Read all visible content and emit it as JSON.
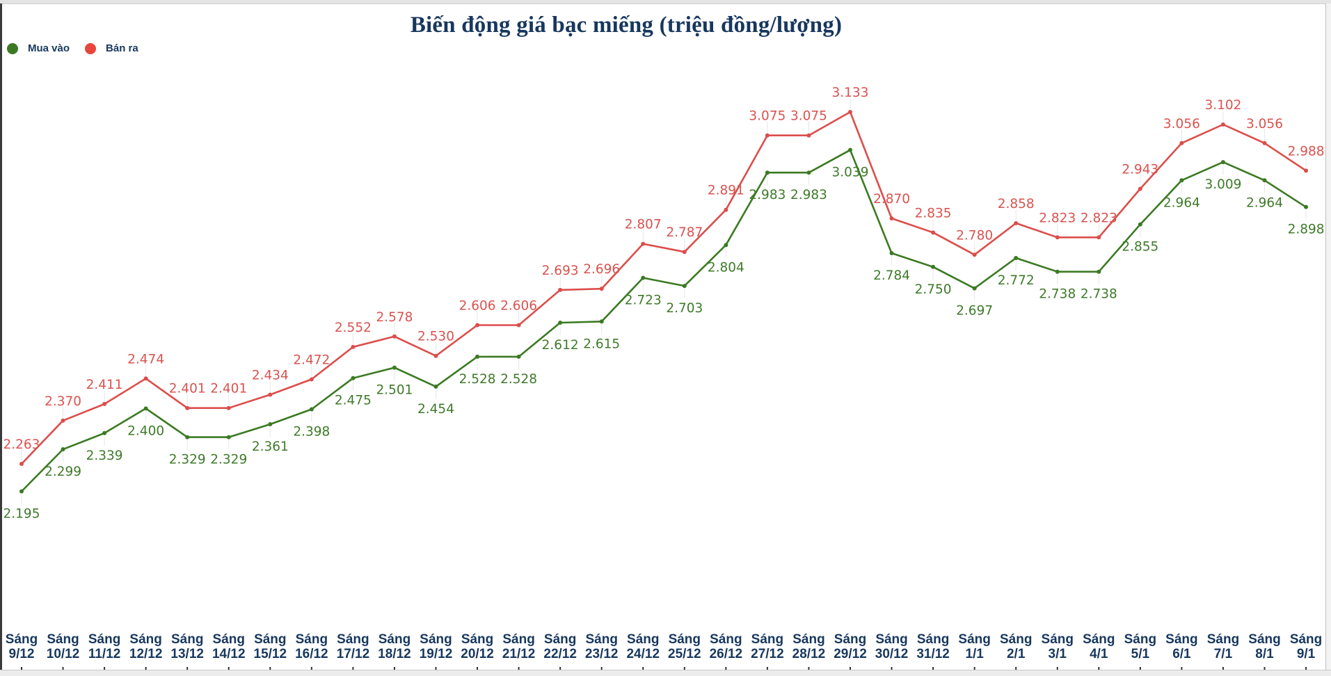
{
  "title": "Biến động giá bạc miếng (triệu đồng/lượng)",
  "legend": [
    {
      "label": "Mua vào",
      "color": "#3b7a22"
    },
    {
      "label": "Bán ra",
      "color": "#e8453c"
    }
  ],
  "colors": {
    "buy_line": "#3b7a22",
    "sell_line": "#dc4d4a",
    "buy_label": "#3f7a2a",
    "sell_label": "#d9534f",
    "axis_label": "#17375e",
    "title": "#17375e"
  },
  "chart_data": {
    "type": "line",
    "title": "Biến động giá bạc miếng (triệu đồng/lượng)",
    "xlabel": "",
    "ylabel": "",
    "legend_position": "top-left",
    "grid": false,
    "categories": [
      "Sáng 9/12",
      "Sáng 10/12",
      "Sáng 11/12",
      "Sáng 12/12",
      "Sáng 13/12",
      "Sáng 14/12",
      "Sáng 15/12",
      "Sáng 16/12",
      "Sáng 17/12",
      "Sáng 18/12",
      "Sáng 19/12",
      "Sáng 20/12",
      "Sáng 21/12",
      "Sáng 22/12",
      "Sáng 23/12",
      "Sáng 24/12",
      "Sáng 25/12",
      "Sáng 26/12",
      "Sáng 27/12",
      "Sáng 28/12",
      "Sáng 29/12",
      "Sáng 30/12",
      "Sáng 31/12",
      "Sáng 1/1",
      "Sáng 2/1",
      "Sáng 3/1",
      "Sáng 4/1",
      "Sáng 5/1",
      "Sáng 6/1",
      "Sáng 7/1",
      "Sáng 8/1",
      "Sáng 9/1"
    ],
    "series": [
      {
        "name": "Mua vào",
        "values": [
          2.195,
          2.299,
          2.339,
          2.4,
          2.329,
          2.329,
          2.361,
          2.398,
          2.475,
          2.501,
          2.454,
          2.528,
          2.528,
          2.612,
          2.615,
          2.723,
          2.703,
          2.804,
          2.983,
          2.983,
          3.039,
          2.784,
          2.75,
          2.697,
          2.772,
          2.738,
          2.738,
          2.855,
          2.964,
          3.009,
          2.964,
          2.898
        ]
      },
      {
        "name": "Bán ra",
        "values": [
          2.263,
          2.37,
          2.411,
          2.474,
          2.401,
          2.401,
          2.434,
          2.472,
          2.552,
          2.578,
          2.53,
          2.606,
          2.606,
          2.693,
          2.696,
          2.807,
          2.787,
          2.891,
          3.075,
          3.075,
          3.133,
          2.87,
          2.835,
          2.78,
          2.858,
          2.823,
          2.823,
          2.943,
          3.056,
          3.102,
          3.056,
          2.988
        ]
      }
    ]
  }
}
